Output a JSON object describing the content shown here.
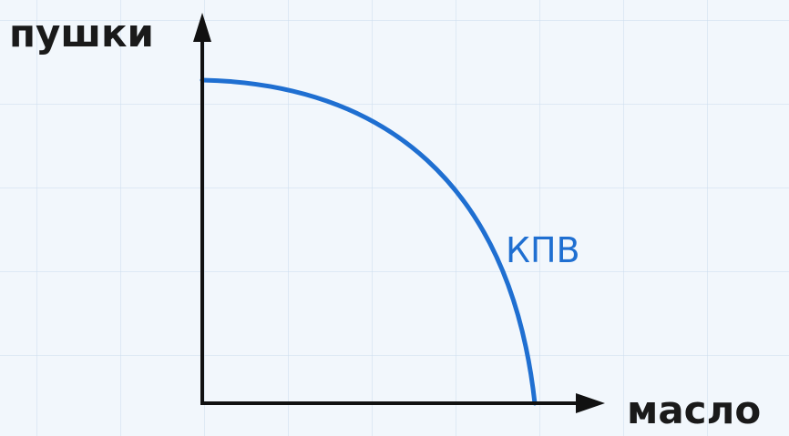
{
  "diagram": {
    "y_axis_label": "пушки",
    "x_axis_label": "масло",
    "curve_label": "КПВ"
  },
  "colors": {
    "curve": "#1f6fd1",
    "axes": "#111111",
    "label_text": "#1a1a1a",
    "background": "#f2f7fc"
  }
}
